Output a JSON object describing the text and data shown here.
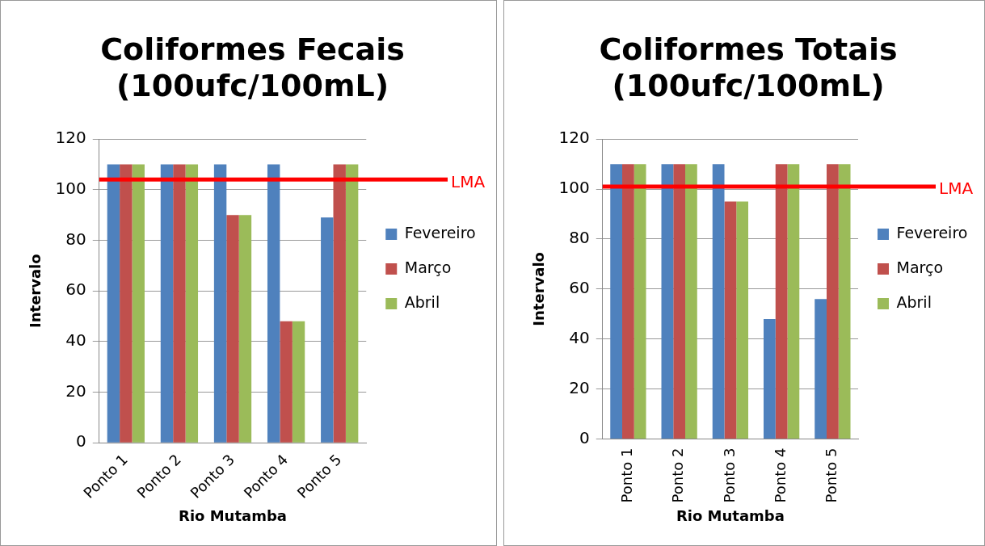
{
  "chart_data": [
    {
      "type": "bar",
      "title": [
        "Coliformes Fecais",
        "(100ufc/100mL)"
      ],
      "xlabel": "Rio Mutamba",
      "ylabel": "Intervalo",
      "categories": [
        "Ponto 1",
        "Ponto 2",
        "Ponto 3",
        "Ponto 4",
        "Ponto 5"
      ],
      "series": [
        {
          "name": "Fevereiro",
          "color": "#4f81bd",
          "values": [
            110,
            110,
            110,
            110,
            89
          ]
        },
        {
          "name": "Março",
          "color": "#c0504d",
          "values": [
            110,
            110,
            90,
            48,
            110
          ]
        },
        {
          "name": "Abril",
          "color": "#9bbb59",
          "values": [
            110,
            110,
            90,
            48,
            110
          ]
        }
      ],
      "ylim": [
        0,
        120
      ],
      "yticks": [
        0,
        20,
        40,
        60,
        80,
        100,
        120
      ],
      "grid": "y",
      "legend": "right",
      "ref_lines": [
        {
          "axis": "y",
          "value": 104,
          "label": "LMA",
          "color": "#ff0000"
        }
      ]
    },
    {
      "type": "bar",
      "title": [
        "Coliformes Totais",
        "(100ufc/100mL)"
      ],
      "xlabel": "Rio Mutamba",
      "ylabel": "Intervalo",
      "categories": [
        "Ponto 1",
        "Ponto 2",
        "Ponto 3",
        "Ponto 4",
        "Ponto 5"
      ],
      "series": [
        {
          "name": "Fevereiro",
          "color": "#4f81bd",
          "values": [
            110,
            110,
            110,
            48,
            56
          ]
        },
        {
          "name": "Março",
          "color": "#c0504d",
          "values": [
            110,
            110,
            95,
            110,
            110
          ]
        },
        {
          "name": "Abril",
          "color": "#9bbb59",
          "values": [
            110,
            110,
            95,
            110,
            110
          ]
        }
      ],
      "ylim": [
        0,
        120
      ],
      "yticks": [
        0,
        20,
        40,
        60,
        80,
        100,
        120
      ],
      "grid": "y",
      "legend": "right",
      "ref_lines": [
        {
          "axis": "y",
          "value": 101,
          "label": "LMA",
          "color": "#ff0000"
        }
      ]
    }
  ]
}
